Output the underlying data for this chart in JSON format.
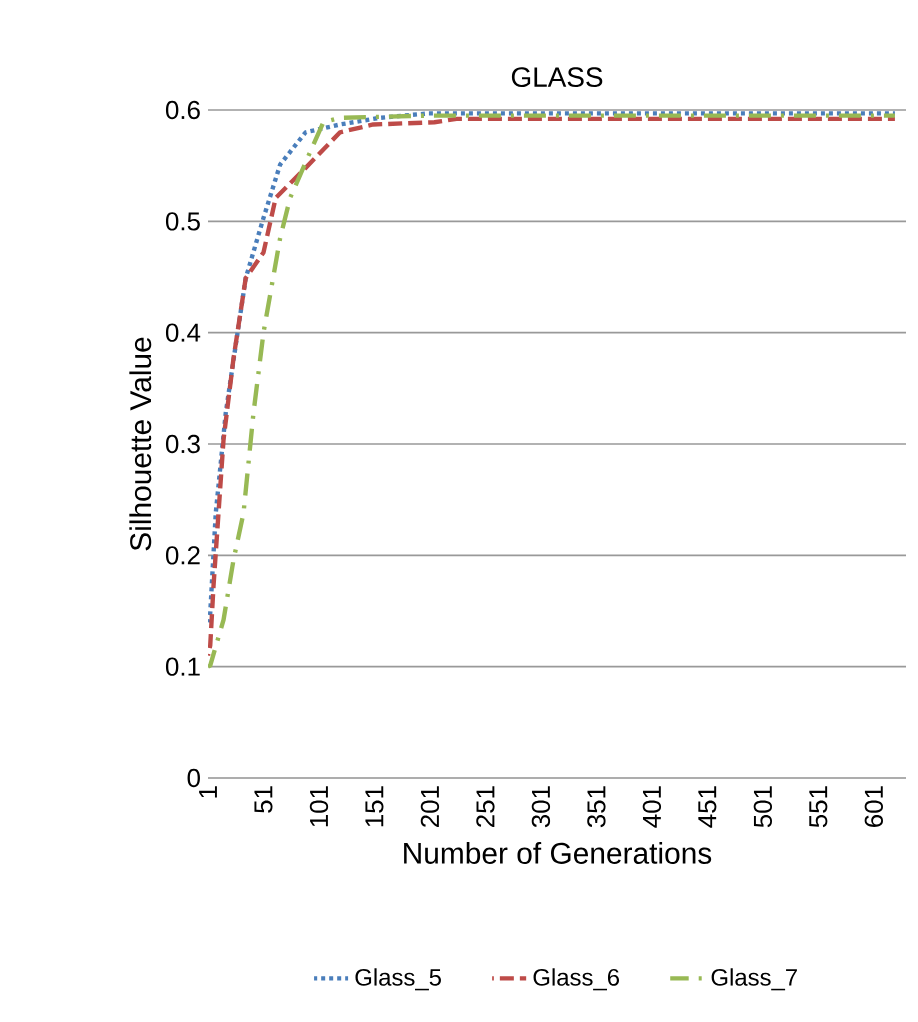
{
  "chart_data": {
    "type": "line",
    "title": "GLASS",
    "xlabel": "Number of Generations",
    "ylabel": "Silhouette Value",
    "xlim": [
      1,
      630
    ],
    "xticks": [
      1,
      51,
      101,
      151,
      201,
      251,
      301,
      351,
      401,
      451,
      501,
      551,
      601
    ],
    "ylim": [
      0,
      0.6
    ],
    "yticks": [
      0,
      0.1,
      0.2,
      0.3,
      0.4,
      0.5,
      0.6
    ],
    "grid": "y",
    "legend": "bottom",
    "marker": "none",
    "series": [
      {
        "name": "Glass_5",
        "color": "#4a7ebb",
        "line_style": "dotted",
        "x": [
          1,
          3,
          8,
          17,
          26,
          35,
          51,
          66,
          89,
          120,
          156,
          200,
          300,
          400,
          500,
          620
        ],
        "values": [
          0.14,
          0.148,
          0.238,
          0.328,
          0.389,
          0.449,
          0.503,
          0.551,
          0.58,
          0.587,
          0.593,
          0.597,
          0.597,
          0.597,
          0.597,
          0.597
        ]
      },
      {
        "name": "Glass_6",
        "color": "#be4b48",
        "line_style": "dashed",
        "x": [
          1,
          3,
          6,
          15,
          24,
          35,
          51,
          62,
          89,
          120,
          150,
          205,
          225,
          300,
          400,
          500,
          620
        ],
        "values": [
          0.11,
          0.119,
          0.173,
          0.304,
          0.377,
          0.449,
          0.472,
          0.521,
          0.548,
          0.58,
          0.587,
          0.589,
          0.592,
          0.592,
          0.592,
          0.592,
          0.592
        ]
      },
      {
        "name": "Glass_7",
        "color": "#98b954",
        "line_style": "dashdot",
        "x": [
          1,
          3,
          15,
          24,
          33,
          42,
          51,
          66,
          75,
          96,
          105,
          120,
          200,
          300,
          400,
          500,
          620
        ],
        "values": [
          0.1,
          0.101,
          0.142,
          0.196,
          0.238,
          0.328,
          0.4,
          0.485,
          0.521,
          0.569,
          0.589,
          0.593,
          0.595,
          0.595,
          0.595,
          0.595,
          0.595
        ]
      }
    ]
  }
}
